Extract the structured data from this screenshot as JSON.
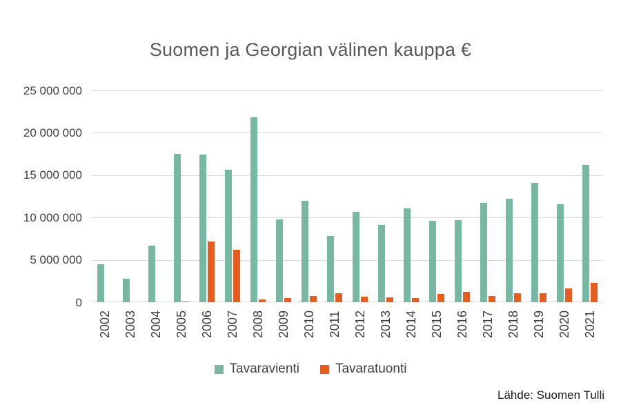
{
  "title": "Suomen ja Georgian välinen kauppa €",
  "source_note": "Lähde: Suomen Tulli",
  "colors": {
    "export_series": "#77B8A2",
    "import_series": "#E75D1D",
    "gridline": "#D9D9D9",
    "title_text": "#595959",
    "axis_text": "#3F3F3F",
    "source_text": "#1A1A1A",
    "background": "#FFFFFF"
  },
  "chart_data": {
    "type": "bar",
    "title": "Suomen ja Georgian välinen kauppa €",
    "xlabel": "",
    "ylabel": "",
    "ylim": [
      0,
      25000000
    ],
    "grid": true,
    "legend_position": "bottom",
    "categories": [
      "2002",
      "2003",
      "2004",
      "2005",
      "2006",
      "2007",
      "2008",
      "2009",
      "2010",
      "2011",
      "2012",
      "2013",
      "2014",
      "2015",
      "2016",
      "2017",
      "2018",
      "2019",
      "2020",
      "2021"
    ],
    "series": [
      {
        "name": "Tavaravienti",
        "color": "#77B8A2",
        "values": [
          4500000,
          2800000,
          6700000,
          17500000,
          17400000,
          15600000,
          21800000,
          9800000,
          12000000,
          7800000,
          10700000,
          9100000,
          11100000,
          9600000,
          9700000,
          11700000,
          12200000,
          14100000,
          11600000,
          16200000
        ]
      },
      {
        "name": "Tavaratuonti",
        "color": "#E75D1D",
        "values": [
          0,
          0,
          0,
          50000,
          7200000,
          6200000,
          300000,
          450000,
          700000,
          1100000,
          650000,
          550000,
          500000,
          950000,
          1200000,
          750000,
          1050000,
          1100000,
          1600000,
          2300000
        ]
      }
    ],
    "yticks": [
      {
        "value": 0,
        "label": "0"
      },
      {
        "value": 5000000,
        "label": "5 000 000"
      },
      {
        "value": 10000000,
        "label": "10 000 000"
      },
      {
        "value": 15000000,
        "label": "15 000 000"
      },
      {
        "value": 20000000,
        "label": "20 000 000"
      },
      {
        "value": 25000000,
        "label": "25 000 000"
      }
    ]
  }
}
